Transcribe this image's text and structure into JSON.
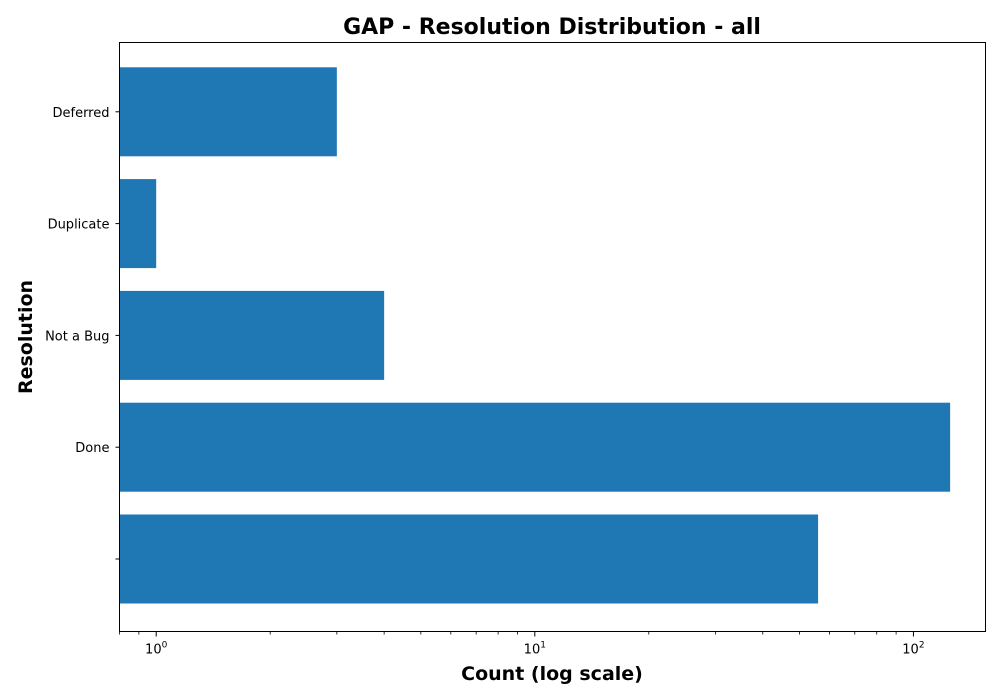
{
  "chart_data": {
    "type": "bar",
    "orientation": "horizontal",
    "title": "GAP - Resolution Distribution - all",
    "xlabel": "Count (log scale)",
    "ylabel": "Resolution",
    "x_scale": "log",
    "xlim": [
      0.8,
      155
    ],
    "categories": [
      "",
      "Done",
      "Not a Bug",
      "Duplicate",
      "Deferred"
    ],
    "values": [
      56,
      125,
      4,
      1,
      3
    ],
    "x_ticks": [
      {
        "base": "10",
        "exp": "0",
        "value": 1
      },
      {
        "base": "10",
        "exp": "1",
        "value": 10
      },
      {
        "base": "10",
        "exp": "2",
        "value": 100
      }
    ],
    "bar_color": "#1f77b4",
    "grid": false
  }
}
